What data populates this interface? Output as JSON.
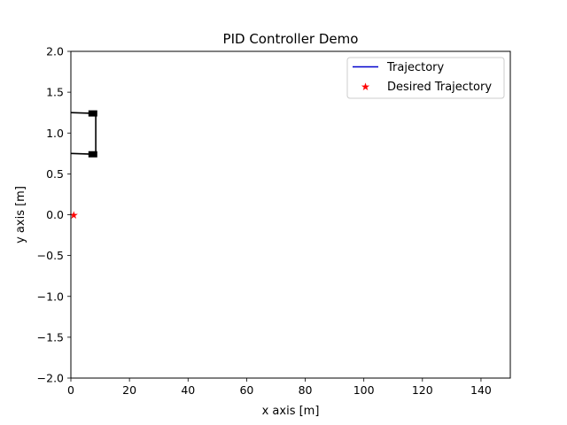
{
  "chart_data": {
    "type": "line",
    "title": "PID Controller Demo",
    "xlabel": "x axis [m]",
    "ylabel": "y axis [m]",
    "xlim": [
      0,
      150
    ],
    "ylim": [
      -2.0,
      2.0
    ],
    "x_ticks": [
      0,
      20,
      40,
      60,
      80,
      100,
      120,
      140
    ],
    "x_tick_labels": [
      "0",
      "20",
      "40",
      "60",
      "80",
      "100",
      "120",
      "140"
    ],
    "y_ticks": [
      2.0,
      1.5,
      1.0,
      0.5,
      0.0,
      -0.5,
      -1.0,
      -1.5,
      -2.0
    ],
    "y_tick_labels": [
      "2.0",
      "1.5",
      "1.0",
      "0.5",
      "0.0",
      "−0.5",
      "−1.0",
      "−1.5",
      "−2.0"
    ],
    "grid": false,
    "legend_position": "top-right",
    "series": [
      {
        "name": "Trajectory",
        "color": "#0000cc",
        "style": "line",
        "x": [],
        "y": []
      },
      {
        "name": "Desired Trajectory",
        "color": "#ff0000",
        "style": "star-marker",
        "x": [
          1.0
        ],
        "y": [
          0.0
        ]
      }
    ],
    "vehicle": {
      "color": "#000000",
      "lines": [
        {
          "x": [
            0.0,
            8.0
          ],
          "y": [
            1.25,
            1.24
          ]
        },
        {
          "x": [
            0.0,
            8.0
          ],
          "y": [
            0.75,
            0.74
          ]
        },
        {
          "x": [
            8.5,
            8.5
          ],
          "y": [
            1.24,
            0.74
          ]
        }
      ],
      "wheels": [
        {
          "x": 7.5,
          "y": 1.24
        },
        {
          "x": 7.5,
          "y": 0.74
        }
      ]
    }
  }
}
